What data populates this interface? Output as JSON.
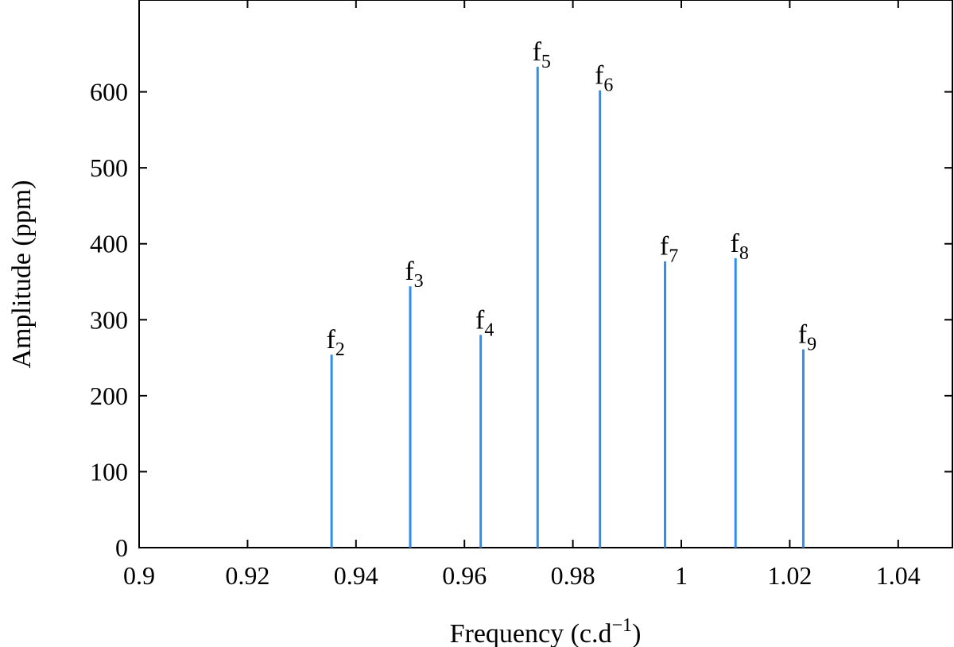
{
  "chart_data": {
    "type": "bar",
    "style": "stem",
    "xlabel": "Frequency (c.d",
    "xlabel_superscript": "−1",
    "xlabel_suffix": ")",
    "ylabel": "Amplitude (ppm)",
    "xlim": [
      0.9,
      1.05
    ],
    "ylim": [
      0,
      700
    ],
    "xticks": [
      0.9,
      0.92,
      0.94,
      0.96,
      0.98,
      1,
      1.02,
      1.04
    ],
    "xtick_labels": [
      "0.9",
      "0.92",
      "0.94",
      "0.96",
      "0.98",
      "1",
      "1.02",
      "1.04"
    ],
    "yticks": [
      0,
      100,
      200,
      300,
      400,
      500,
      600
    ],
    "ytick_labels": [
      "0",
      "100",
      "200",
      "300",
      "400",
      "500",
      "600"
    ],
    "grid": false,
    "bar_color": "#2e8ef0",
    "points": [
      {
        "label": "f",
        "sub": "2",
        "x": 0.9355,
        "y": 254
      },
      {
        "label": "f",
        "sub": "3",
        "x": 0.95,
        "y": 344
      },
      {
        "label": "f",
        "sub": "4",
        "x": 0.963,
        "y": 280
      },
      {
        "label": "f",
        "sub": "5",
        "x": 0.9735,
        "y": 633
      },
      {
        "label": "f",
        "sub": "6",
        "x": 0.985,
        "y": 602
      },
      {
        "label": "f",
        "sub": "7",
        "x": 0.997,
        "y": 377
      },
      {
        "label": "f",
        "sub": "8",
        "x": 1.01,
        "y": 381
      },
      {
        "label": "f",
        "sub": "9",
        "x": 1.0225,
        "y": 261
      }
    ]
  }
}
